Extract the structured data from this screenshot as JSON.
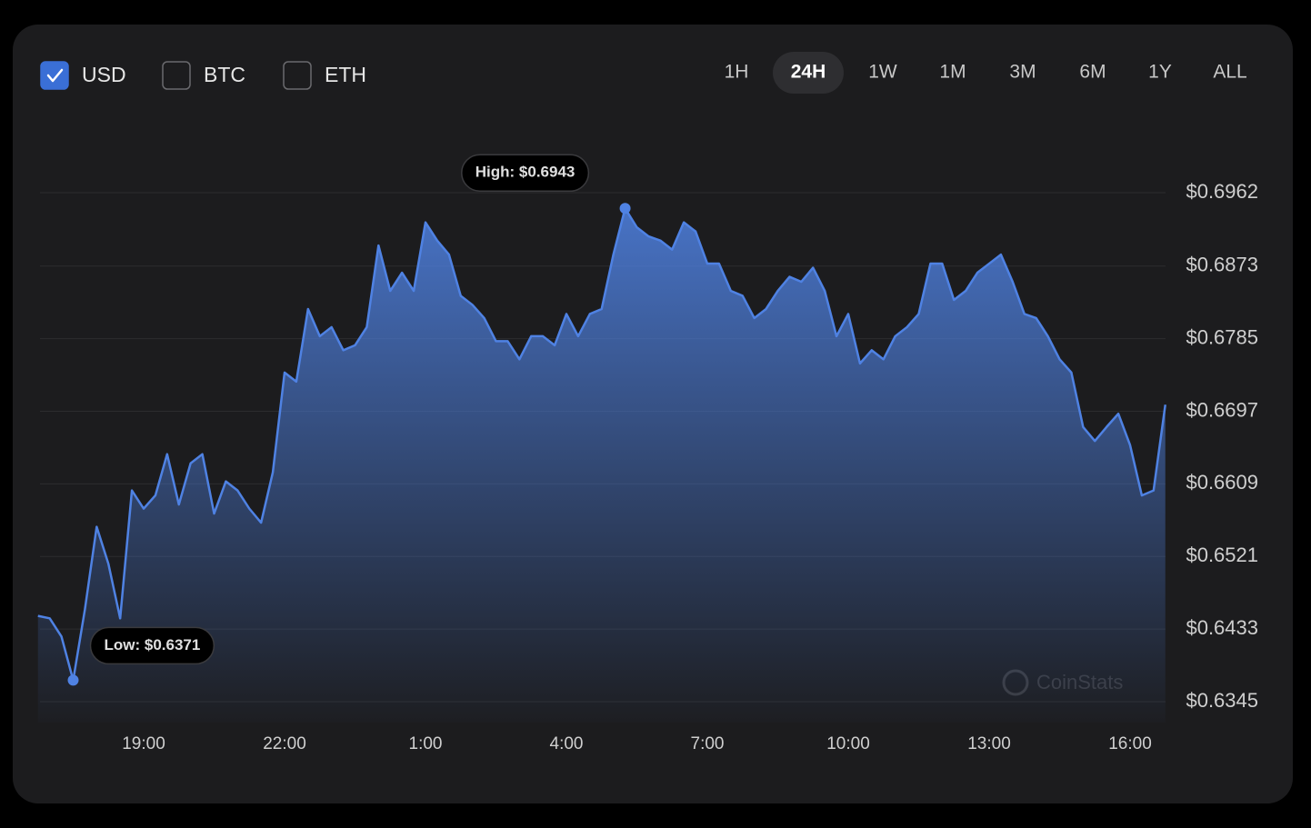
{
  "controls": {
    "currencies": [
      {
        "label": "USD",
        "checked": true
      },
      {
        "label": "BTC",
        "checked": false
      },
      {
        "label": "ETH",
        "checked": false
      }
    ],
    "timeframes": [
      "1H",
      "24H",
      "1W",
      "1M",
      "3M",
      "6M",
      "1Y",
      "ALL"
    ],
    "active_timeframe": "24H"
  },
  "chart_data": {
    "type": "area",
    "color": "#4f82e3",
    "grid": true,
    "watermark": "CoinStats",
    "annotations": {
      "high": "High: $0.6943",
      "low": "Low: $0.6371"
    },
    "categories": [
      null,
      null,
      null,
      null,
      null,
      null,
      null,
      null,
      null,
      "19:00",
      null,
      null,
      null,
      null,
      null,
      null,
      null,
      null,
      null,
      null,
      null,
      "22:00",
      null,
      null,
      null,
      null,
      null,
      null,
      null,
      null,
      null,
      null,
      null,
      "1:00",
      null,
      null,
      null,
      null,
      null,
      null,
      null,
      null,
      null,
      null,
      null,
      "4:00",
      null,
      null,
      null,
      null,
      null,
      null,
      null,
      null,
      null,
      null,
      null,
      "7:00",
      null,
      null,
      null,
      null,
      null,
      null,
      null,
      null,
      null,
      null,
      null,
      "10:00",
      null,
      null,
      null,
      null,
      null,
      null,
      null,
      null,
      null,
      null,
      null,
      "13:00",
      null,
      null,
      null,
      null,
      null,
      null,
      null,
      null,
      null,
      null,
      null,
      "16:00",
      null,
      null,
      null
    ],
    "values": [
      0.6449,
      0.6446,
      0.6424,
      0.6371,
      0.6457,
      0.6557,
      0.6512,
      0.6446,
      0.6601,
      0.6579,
      0.6595,
      0.6645,
      0.6584,
      0.6634,
      0.6645,
      0.6573,
      0.6612,
      0.6601,
      0.6579,
      0.6562,
      0.6623,
      0.6744,
      0.6733,
      0.6821,
      0.6788,
      0.6799,
      0.6771,
      0.6777,
      0.6799,
      0.6898,
      0.6843,
      0.6865,
      0.6843,
      0.6926,
      0.6904,
      0.6887,
      0.6837,
      0.6826,
      0.681,
      0.6782,
      0.6782,
      0.676,
      0.6788,
      0.6788,
      0.6777,
      0.6815,
      0.6788,
      0.6815,
      0.6821,
      0.6887,
      0.6943,
      0.692,
      0.6909,
      0.6904,
      0.6893,
      0.6926,
      0.6915,
      0.6876,
      0.6876,
      0.6843,
      0.6837,
      0.681,
      0.6821,
      0.6843,
      0.686,
      0.6854,
      0.6871,
      0.6843,
      0.6788,
      0.6815,
      0.6755,
      0.6771,
      0.676,
      0.6788,
      0.6799,
      0.6815,
      0.6876,
      0.6876,
      0.6832,
      0.6843,
      0.6865,
      0.6876,
      0.6887,
      0.6854,
      0.6815,
      0.681,
      0.6788,
      0.676,
      0.6744,
      0.6678,
      0.6661,
      0.6678,
      0.6694,
      0.6656,
      0.6595,
      0.6601,
      0.6705
    ],
    "ylim": [
      0.6345,
      0.6962
    ],
    "yticks": [
      {
        "value": 0.6345,
        "label": "$0.6345"
      },
      {
        "value": 0.6433,
        "label": "$0.6433"
      },
      {
        "value": 0.6521,
        "label": "$0.6521"
      },
      {
        "value": 0.6609,
        "label": "$0.6609"
      },
      {
        "value": 0.6697,
        "label": "$0.6697"
      },
      {
        "value": 0.6785,
        "label": "$0.6785"
      },
      {
        "value": 0.6873,
        "label": "$0.6873"
      },
      {
        "value": 0.6962,
        "label": "$0.6962"
      }
    ]
  }
}
